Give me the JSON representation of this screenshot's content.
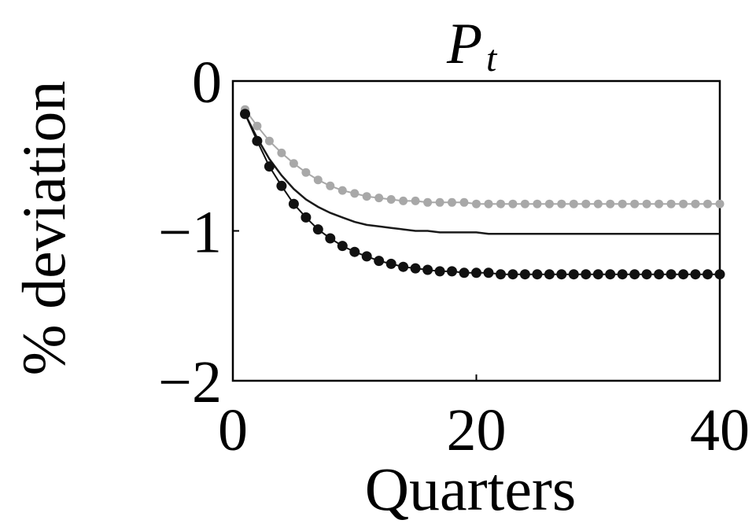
{
  "chart_data": {
    "type": "line",
    "title": "P",
    "title_subscript": "t",
    "xlabel": "Quarters",
    "ylabel": "% deviation",
    "xlim": [
      0,
      40
    ],
    "ylim": [
      -2,
      0
    ],
    "x_ticks": [
      0,
      20,
      40
    ],
    "x_tick_labels": [
      "0",
      "20",
      "40"
    ],
    "y_ticks": [
      0,
      -1,
      -2
    ],
    "y_tick_labels": [
      "0",
      "−1",
      "−2"
    ],
    "grid": false,
    "colors": {
      "light": "#a8a8a8",
      "solid": "#1a1a1a",
      "dark": "#111111"
    },
    "series": [
      {
        "style": "light-dotted",
        "x": [
          1,
          2,
          3,
          4,
          5,
          6,
          7,
          8,
          9,
          10,
          11,
          12,
          13,
          14,
          15,
          16,
          17,
          18,
          19,
          20,
          21,
          22,
          23,
          24,
          25,
          26,
          27,
          28,
          29,
          30,
          31,
          32,
          33,
          34,
          35,
          36,
          37,
          38,
          39,
          40
        ],
        "values": [
          -0.19,
          -0.3,
          -0.4,
          -0.48,
          -0.55,
          -0.61,
          -0.66,
          -0.7,
          -0.73,
          -0.75,
          -0.77,
          -0.78,
          -0.79,
          -0.8,
          -0.8,
          -0.81,
          -0.81,
          -0.81,
          -0.81,
          -0.82,
          -0.82,
          -0.82,
          -0.82,
          -0.82,
          -0.82,
          -0.82,
          -0.82,
          -0.82,
          -0.82,
          -0.82,
          -0.82,
          -0.82,
          -0.82,
          -0.82,
          -0.82,
          -0.82,
          -0.82,
          -0.82,
          -0.82,
          -0.82
        ]
      },
      {
        "style": "solid",
        "x": [
          1,
          2,
          3,
          4,
          5,
          6,
          7,
          8,
          9,
          10,
          11,
          12,
          13,
          14,
          15,
          16,
          17,
          18,
          19,
          20,
          21,
          22,
          23,
          24,
          25,
          26,
          27,
          28,
          29,
          30,
          31,
          32,
          33,
          34,
          35,
          36,
          37,
          38,
          39,
          40
        ],
        "values": [
          -0.22,
          -0.38,
          -0.52,
          -0.63,
          -0.72,
          -0.79,
          -0.84,
          -0.88,
          -0.91,
          -0.94,
          -0.96,
          -0.97,
          -0.98,
          -0.99,
          -1.0,
          -1.0,
          -1.01,
          -1.01,
          -1.01,
          -1.01,
          -1.02,
          -1.02,
          -1.02,
          -1.02,
          -1.02,
          -1.02,
          -1.02,
          -1.02,
          -1.02,
          -1.02,
          -1.02,
          -1.02,
          -1.02,
          -1.02,
          -1.02,
          -1.02,
          -1.02,
          -1.02,
          -1.02,
          -1.02
        ]
      },
      {
        "style": "dark-dotted",
        "x": [
          1,
          2,
          3,
          4,
          5,
          6,
          7,
          8,
          9,
          10,
          11,
          12,
          13,
          14,
          15,
          16,
          17,
          18,
          19,
          20,
          21,
          22,
          23,
          24,
          25,
          26,
          27,
          28,
          29,
          30,
          31,
          32,
          33,
          34,
          35,
          36,
          37,
          38,
          39,
          40
        ],
        "values": [
          -0.22,
          -0.4,
          -0.57,
          -0.7,
          -0.82,
          -0.91,
          -0.99,
          -1.05,
          -1.1,
          -1.14,
          -1.17,
          -1.2,
          -1.22,
          -1.24,
          -1.25,
          -1.26,
          -1.27,
          -1.27,
          -1.28,
          -1.28,
          -1.28,
          -1.29,
          -1.29,
          -1.29,
          -1.29,
          -1.29,
          -1.29,
          -1.29,
          -1.29,
          -1.29,
          -1.29,
          -1.29,
          -1.29,
          -1.29,
          -1.29,
          -1.29,
          -1.29,
          -1.29,
          -1.29,
          -1.29
        ]
      }
    ]
  }
}
